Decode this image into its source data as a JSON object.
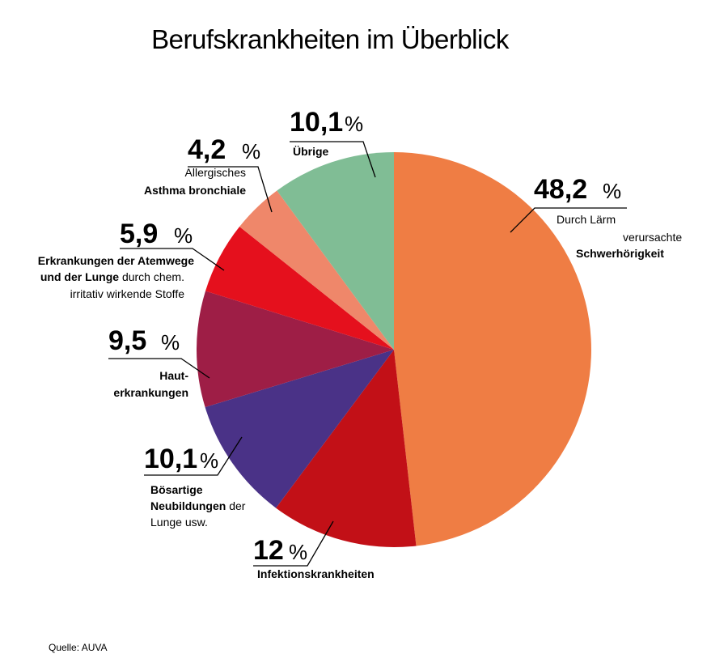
{
  "chart_data": {
    "type": "pie",
    "title": "Berufskrankheiten im Überblick",
    "source": "Quelle: AUVA",
    "unit": "%",
    "slices": [
      {
        "value": 48.2,
        "value_label": "48,2",
        "color": "#ef7d44",
        "label_lines": [
          [
            {
              "t": "Durch Lärm",
              "b": false
            }
          ],
          [
            {
              "t": "verursachte",
              "b": false
            }
          ],
          [
            {
              "t": "Schwerhörigkeit",
              "b": true
            }
          ]
        ]
      },
      {
        "value": 12,
        "value_label": "12",
        "color": "#c21017",
        "label_lines": [
          [
            {
              "t": "Infektionskrankheiten",
              "b": true
            }
          ]
        ]
      },
      {
        "value": 10.1,
        "value_label": "10,1",
        "color": "#4a3287",
        "label_lines": [
          [
            {
              "t": "Bösartige",
              "b": true
            }
          ],
          [
            {
              "t": "Neubildungen",
              "b": true
            },
            {
              "t": " der",
              "b": false
            }
          ],
          [
            {
              "t": "Lunge usw.",
              "b": false
            }
          ]
        ]
      },
      {
        "value": 9.5,
        "value_label": "9,5",
        "color": "#9e1e46",
        "label_lines": [
          [
            {
              "t": "Haut-",
              "b": true
            }
          ],
          [
            {
              "t": "erkrankungen",
              "b": true
            }
          ]
        ]
      },
      {
        "value": 5.9,
        "value_label": "5,9",
        "color": "#e5101d",
        "label_lines": [
          [
            {
              "t": "Erkrankungen der Atemwege",
              "b": true
            }
          ],
          [
            {
              "t": "und der Lunge",
              "b": true
            },
            {
              "t": " durch chem.",
              "b": false
            }
          ],
          [
            {
              "t": "irritativ wirkende Stoffe",
              "b": false
            }
          ]
        ]
      },
      {
        "value": 4.2,
        "value_label": "4,2",
        "color": "#ef876a",
        "label_lines": [
          [
            {
              "t": "Allergisches",
              "b": false
            }
          ],
          [
            {
              "t": "Asthma bronchiale",
              "b": true
            }
          ]
        ]
      },
      {
        "value": 10.1,
        "value_label": "10,1",
        "color": "#80bd95",
        "label_lines": [
          [
            {
              "t": "Übrige",
              "b": true
            }
          ]
        ]
      }
    ]
  }
}
